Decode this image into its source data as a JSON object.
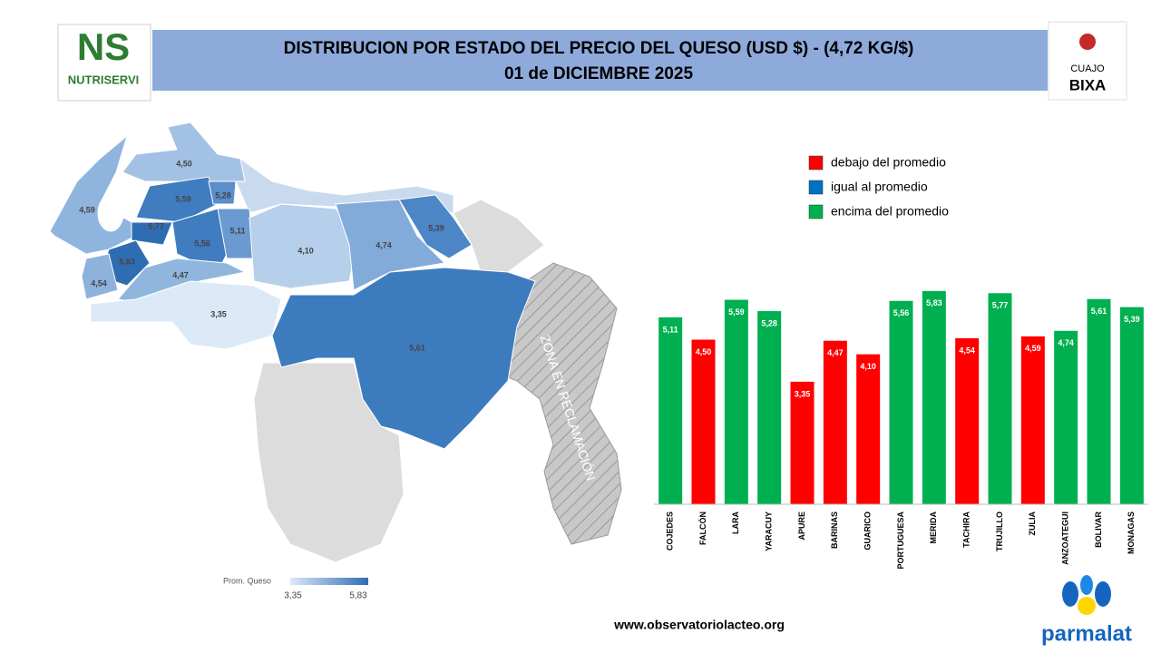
{
  "header": {
    "title": "DISTRIBUCION POR ESTADO DEL PRECIO DEL QUESO (USD $)  - (4,72 KG/$)",
    "subtitle": "01 de DICIEMBRE 2025"
  },
  "logos": {
    "left_mark": "NS",
    "left_name": "NUTRISERVI",
    "right_top": "CUAJO",
    "right_bottom": "BIXA",
    "bottom": "parmalat"
  },
  "map": {
    "labels": [
      "4,50",
      "4,59",
      "5,59",
      "5,28",
      "5,77",
      "5,11",
      "5,56",
      "5,83",
      "4,54",
      "4,47",
      "4,10",
      "4,74",
      "5,39",
      "3,35",
      "5,61"
    ],
    "zone": "ZONA EN RECLAMACIÓN",
    "scale_title": "Prom. Queso",
    "scale_min": "3,35",
    "scale_max": "5,83"
  },
  "footer": "www.observatoriolacteo.org",
  "chart_data": {
    "type": "bar",
    "categories": [
      "COJEDES",
      "FALCÓN",
      "LARA",
      "YARACUY",
      "APURE",
      "BARINAS",
      "GUARICO",
      "PORTUGUESA",
      "MERIDA",
      "TACHIRA",
      "TRUJILLO",
      "ZULIA",
      "ANZOATEGUI",
      "BOLIVAR",
      "MONAGAS"
    ],
    "values": [
      5.11,
      4.5,
      5.59,
      5.28,
      3.35,
      4.47,
      4.1,
      5.56,
      5.83,
      4.54,
      5.77,
      4.59,
      4.74,
      5.61,
      5.39
    ],
    "value_labels": [
      "5,11",
      "4,50",
      "5,59",
      "5,28",
      "3,35",
      "4,47",
      "4,10",
      "5,56",
      "5,83",
      "4,54",
      "5,77",
      "4,59",
      "4,74",
      "5,61",
      "5,39"
    ],
    "colors": [
      "#00b050",
      "#ff0000",
      "#00b050",
      "#00b050",
      "#ff0000",
      "#ff0000",
      "#ff0000",
      "#00b050",
      "#00b050",
      "#ff0000",
      "#00b050",
      "#ff0000",
      "#00b050",
      "#00b050",
      "#00b050"
    ],
    "ylim": [
      0,
      6
    ],
    "legend": [
      {
        "name": "debajo del promedio",
        "color": "#ff0000"
      },
      {
        "name": "igual al promedio",
        "color": "#0070c0"
      },
      {
        "name": "encima del promedio",
        "color": "#00b050"
      }
    ]
  }
}
